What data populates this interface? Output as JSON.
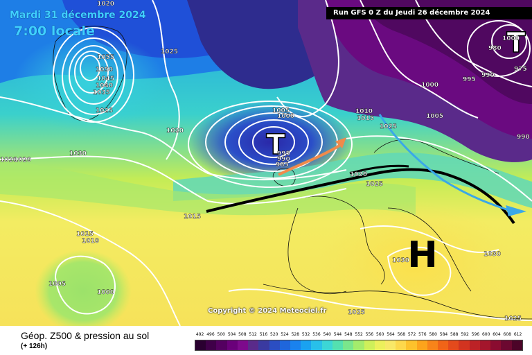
{
  "header": {
    "date": "Mardi 31 décembre 2024",
    "time": "7:00 locale",
    "run": "Run GFS 0 Z du Jeudi 26 décembre 2024"
  },
  "copyright": "Copyright © 2024 Meteociel.fr",
  "footer": {
    "title": "Géop. Z500 & pression au sol",
    "subtitle": "(+ 126h)"
  },
  "colors": {
    "background": "#ffffff",
    "isobar": "#ffffff",
    "high_low": "#ffffff",
    "arrow_black": "#000000",
    "arrow_orange": "#f08a4b",
    "arrow_blue": "#3aa8e8"
  },
  "pressure_systems": [
    {
      "symbol": "T",
      "kind": "low",
      "near": "North Atlantic, south of Iceland"
    },
    {
      "symbol": "T",
      "kind": "low",
      "near": "Northern Russia"
    },
    {
      "symbol": "H",
      "kind": "high",
      "near": "Italy / Balkans"
    }
  ],
  "isobar_labels": [
    "1020",
    "1055",
    "1050",
    "1045",
    "1040",
    "1035",
    "1025",
    "1025",
    "1020",
    "1030",
    "1020",
    "1020",
    "1005",
    "1000",
    "995",
    "990",
    "985",
    "1010",
    "1015",
    "1020",
    "1025",
    "1015",
    "1015",
    "1010",
    "1005",
    "1000",
    "1000",
    "995",
    "990",
    "980",
    "975",
    "990",
    "1030",
    "1025",
    "1030",
    "1025",
    "1025",
    "1000",
    "1005"
  ],
  "scale": {
    "ticks": [
      "492",
      "496",
      "500",
      "504",
      "508",
      "512",
      "516",
      "520",
      "524",
      "528",
      "532",
      "536",
      "540",
      "544",
      "548",
      "552",
      "556",
      "560",
      "564",
      "568",
      "572",
      "576",
      "580",
      "584",
      "588",
      "592",
      "596",
      "600",
      "604",
      "608",
      "612"
    ],
    "colors": [
      "#2a0030",
      "#3f0048",
      "#540060",
      "#6a007a",
      "#7d0a8c",
      "#5a2b8a",
      "#3a3aa0",
      "#2b4ec2",
      "#1f66dc",
      "#1a82ee",
      "#1aa2f0",
      "#28c0ea",
      "#3cd6d6",
      "#54e0b0",
      "#7ae68c",
      "#a4ec6c",
      "#cef05a",
      "#ecf05c",
      "#f8e868",
      "#fcd84c",
      "#fcc22c",
      "#fca41c",
      "#f8841a",
      "#f06418",
      "#e44a1c",
      "#d23420",
      "#bc2226",
      "#a4162c",
      "#8a0c30",
      "#6c0830",
      "#4c0428"
    ]
  }
}
